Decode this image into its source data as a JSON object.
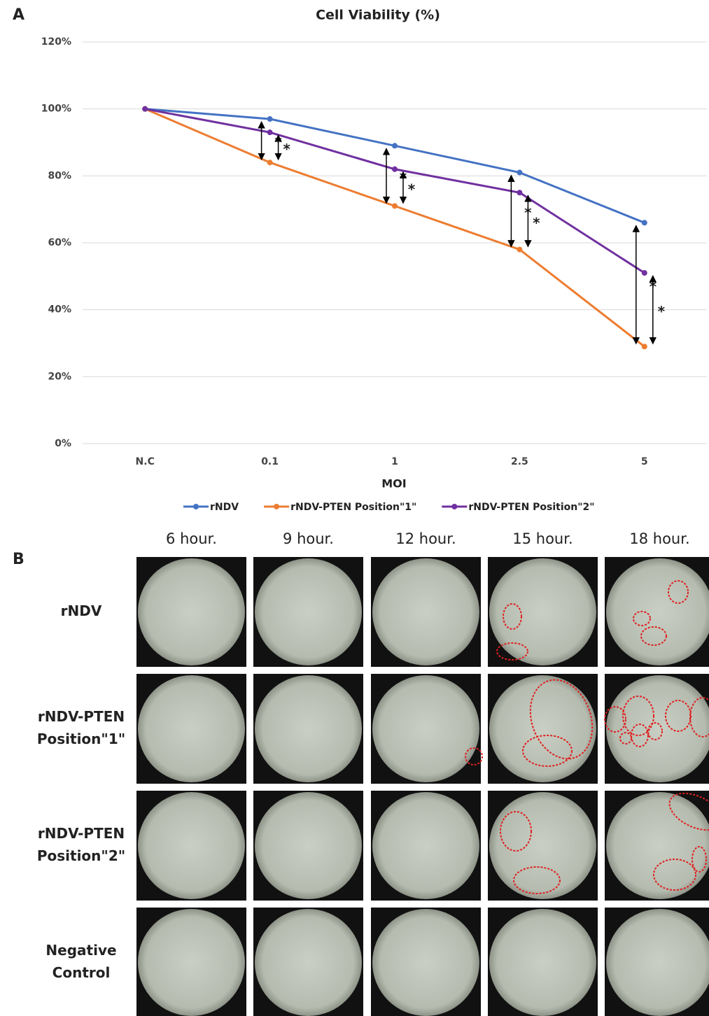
{
  "panel_labels": [
    "A",
    "B"
  ],
  "chart_data": {
    "type": "line",
    "title": "Cell Viability (%)",
    "x_label": "MOI",
    "categories": [
      "N.C",
      "0.1",
      "1",
      "2.5",
      "5"
    ],
    "series": [
      {
        "name": "rNDV",
        "color": "#4472c4",
        "values": [
          100,
          97,
          89,
          81,
          66
        ]
      },
      {
        "name": "rNDV-PTEN Position\"1\"",
        "color": "#ed7d31",
        "values": [
          100,
          84,
          71,
          58,
          29
        ]
      },
      {
        "name": "rNDV-PTEN Position\"2\"",
        "color": "#7030a0",
        "values": [
          100,
          93,
          82,
          75,
          51
        ]
      }
    ],
    "ylim": [
      0,
      120
    ],
    "yticks": [
      {
        "value": 0,
        "label": "0%"
      },
      {
        "value": 20,
        "label": "20%"
      },
      {
        "value": 40,
        "label": "40%"
      },
      {
        "value": 60,
        "label": "60%"
      },
      {
        "value": 80,
        "label": "80%"
      },
      {
        "value": 100,
        "label": "100%"
      },
      {
        "value": 120,
        "label": "120%"
      }
    ],
    "grid": true,
    "legend": "bottom",
    "annotations": [
      "*",
      "*",
      "*",
      "*",
      "*",
      "*",
      "*",
      "*"
    ]
  },
  "image_grid": {
    "columns": [
      "6 hour.",
      "9 hour.",
      "12 hour.",
      "15 hour.",
      "18 hour."
    ],
    "rows": [
      [
        "rNDV"
      ],
      [
        "rNDV-PTEN",
        "Position\"1\""
      ],
      [
        "rNDV-PTEN",
        "Position\"2\""
      ],
      [
        "Negative",
        "Control"
      ]
    ]
  }
}
